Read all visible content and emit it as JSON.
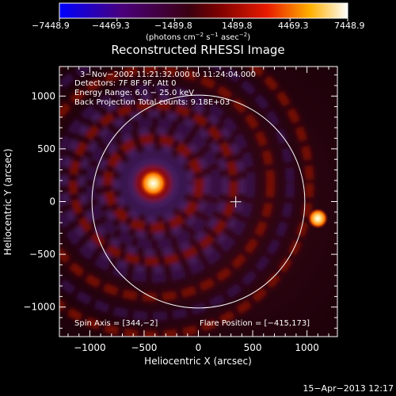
{
  "colorbar": {
    "ticks": [
      "−7448.9",
      "−4469.3",
      "−1489.8",
      "1489.8",
      "4469.3",
      "7448.9"
    ],
    "unit_main": "(photons cm",
    "unit_sup1": "−2",
    "unit_mid": " s",
    "unit_sup2": "−1",
    "unit_end": " asec",
    "unit_sup3": "−2",
    "unit_close": ")"
  },
  "plot": {
    "title": "Reconstructed RHESSI Image",
    "info": [
      "3−Nov−2002 11:21:32.000 to 11:24:04.000",
      "Detectors: 7F 8F 9F, Att 0",
      "Energy Range: 6.0 − 25.0 keV",
      "Back Projection     Total counts: 9.18E+03"
    ],
    "spin_axis": "Spin Axis = [344,−2]",
    "flare_position": "Flare Position = [−415,173]"
  },
  "footer": {
    "timestamp": "15−Apr−2013 12:17"
  },
  "chart_data": {
    "type": "heatmap",
    "title": "Reconstructed RHESSI Image",
    "xlabel": "Heliocentric X (arcsec)",
    "ylabel": "Heliocentric Y (arcsec)",
    "xlim": [
      -1280,
      1280
    ],
    "ylim": [
      -1280,
      1280
    ],
    "xticks": [
      -1000,
      -500,
      0,
      500,
      1000
    ],
    "yticks": [
      -1000,
      -500,
      0,
      500,
      1000
    ],
    "xtick_labels": [
      "−1000",
      "−500",
      "0",
      "500",
      "1000"
    ],
    "ytick_labels": [
      "−1000",
      "−500",
      "0",
      "500",
      "1000"
    ],
    "colorbar_range": [
      -7448.9,
      7448.9
    ],
    "solar_limb_radius": 980,
    "sources": [
      {
        "x": -415,
        "y": 173,
        "kind": "flare"
      },
      {
        "x": 1100,
        "y": -160,
        "kind": "secondary"
      }
    ],
    "spin_axis": [
      344,
      -2
    ],
    "colormap": "red-temperature",
    "grid": false
  }
}
